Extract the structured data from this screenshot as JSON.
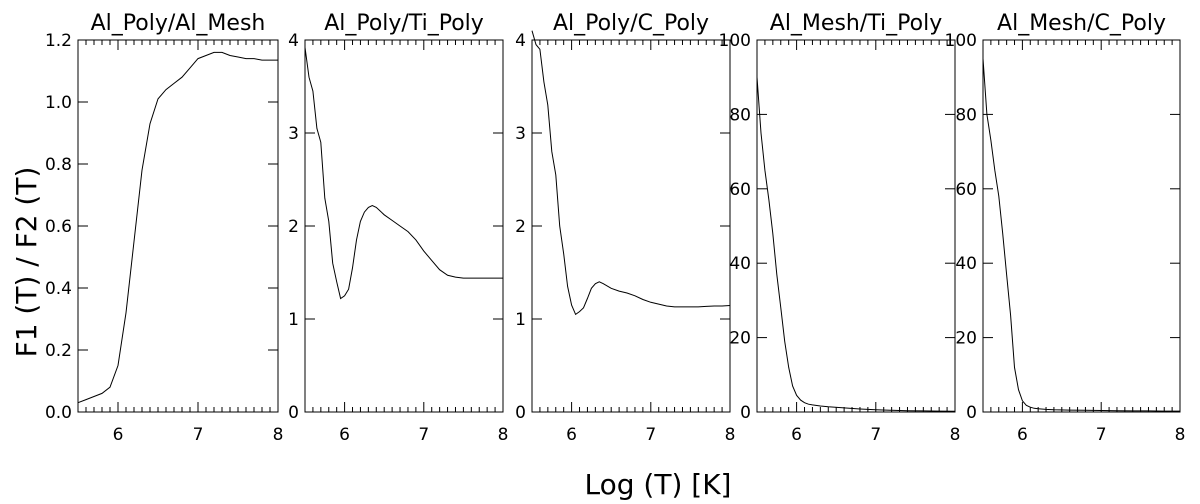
{
  "chart_data": {
    "type": "line",
    "ylabel": "F1 (T) / F2 (T)",
    "xlabel": "Log (T) [K]",
    "panels": [
      {
        "title": "Al_Poly/Al_Mesh",
        "xlim": [
          5.5,
          8.0
        ],
        "ylim": [
          0.0,
          1.2
        ],
        "xticks": [
          6,
          7,
          8
        ],
        "yticks": [
          0.0,
          0.2,
          0.4,
          0.6,
          0.8,
          1.0,
          1.2
        ],
        "ytick_labels": [
          "0.0",
          "0.2",
          "0.4",
          "0.6",
          "0.8",
          "1.0",
          "1.2"
        ],
        "x": [
          5.5,
          5.6,
          5.7,
          5.8,
          5.9,
          6.0,
          6.1,
          6.2,
          6.3,
          6.4,
          6.5,
          6.6,
          6.7,
          6.8,
          6.9,
          7.0,
          7.1,
          7.2,
          7.3,
          7.4,
          7.5,
          7.6,
          7.7,
          7.8,
          7.9,
          8.0
        ],
        "y": [
          0.03,
          0.04,
          0.05,
          0.06,
          0.08,
          0.15,
          0.32,
          0.55,
          0.78,
          0.93,
          1.01,
          1.04,
          1.06,
          1.08,
          1.11,
          1.14,
          1.15,
          1.16,
          1.16,
          1.15,
          1.145,
          1.14,
          1.14,
          1.135,
          1.135,
          1.135
        ]
      },
      {
        "title": "Al_Poly/Ti_Poly",
        "xlim": [
          5.5,
          8.0
        ],
        "ylim": [
          0,
          4
        ],
        "xticks": [
          6,
          7,
          8
        ],
        "yticks": [
          0,
          1,
          2,
          3,
          4
        ],
        "ytick_labels": [
          "0",
          "1",
          "2",
          "3",
          "4"
        ],
        "x": [
          5.5,
          5.55,
          5.6,
          5.65,
          5.7,
          5.75,
          5.8,
          5.85,
          5.9,
          5.95,
          6.0,
          6.05,
          6.1,
          6.15,
          6.2,
          6.25,
          6.3,
          6.35,
          6.4,
          6.5,
          6.6,
          6.7,
          6.8,
          6.9,
          7.0,
          7.1,
          7.2,
          7.3,
          7.4,
          7.5,
          7.6,
          7.7,
          7.8,
          7.9,
          8.0
        ],
        "y": [
          3.92,
          3.6,
          3.45,
          3.05,
          2.9,
          2.3,
          2.05,
          1.6,
          1.4,
          1.22,
          1.25,
          1.32,
          1.55,
          1.85,
          2.05,
          2.15,
          2.2,
          2.22,
          2.2,
          2.12,
          2.06,
          2.0,
          1.94,
          1.85,
          1.73,
          1.63,
          1.53,
          1.47,
          1.45,
          1.44,
          1.44,
          1.44,
          1.44,
          1.44,
          1.44
        ]
      },
      {
        "title": "Al_Poly/C_Poly",
        "xlim": [
          5.5,
          8.0
        ],
        "ylim": [
          0,
          4
        ],
        "xticks": [
          6,
          7,
          8
        ],
        "yticks": [
          0,
          1,
          2,
          3,
          4
        ],
        "ytick_labels": [
          "0",
          "1",
          "2",
          "3",
          "4"
        ],
        "x": [
          5.5,
          5.55,
          5.6,
          5.65,
          5.7,
          5.75,
          5.8,
          5.85,
          5.9,
          5.95,
          6.0,
          6.05,
          6.1,
          6.15,
          6.2,
          6.25,
          6.3,
          6.35,
          6.4,
          6.5,
          6.6,
          6.7,
          6.8,
          6.9,
          7.0,
          7.1,
          7.2,
          7.3,
          7.4,
          7.5,
          7.6,
          7.7,
          7.8,
          7.9,
          8.0
        ],
        "y": [
          4.1,
          3.95,
          3.9,
          3.55,
          3.3,
          2.8,
          2.55,
          2.0,
          1.7,
          1.35,
          1.15,
          1.05,
          1.08,
          1.12,
          1.22,
          1.33,
          1.38,
          1.4,
          1.38,
          1.33,
          1.3,
          1.28,
          1.25,
          1.21,
          1.18,
          1.16,
          1.14,
          1.13,
          1.13,
          1.13,
          1.13,
          1.135,
          1.14,
          1.14,
          1.145
        ]
      },
      {
        "title": "Al_Mesh/Ti_Poly",
        "xlim": [
          5.5,
          8.0
        ],
        "ylim": [
          0,
          100
        ],
        "xticks": [
          6,
          7,
          8
        ],
        "yticks": [
          0,
          20,
          40,
          60,
          80,
          100
        ],
        "ytick_labels": [
          "0",
          "20",
          "40",
          "60",
          "80",
          "100"
        ],
        "x": [
          5.5,
          5.55,
          5.6,
          5.65,
          5.7,
          5.75,
          5.8,
          5.85,
          5.9,
          5.95,
          6.0,
          6.05,
          6.1,
          6.15,
          6.2,
          6.3,
          6.4,
          6.6,
          6.8,
          7.0,
          7.2,
          7.4,
          7.6,
          7.8,
          8.0
        ],
        "y": [
          90,
          75,
          65,
          57,
          48,
          37,
          28,
          19,
          12,
          7,
          4.5,
          3.2,
          2.5,
          2.1,
          1.9,
          1.6,
          1.4,
          1.1,
          0.8,
          0.6,
          0.45,
          0.35,
          0.3,
          0.25,
          0.2
        ]
      },
      {
        "title": "Al_Mesh/C_Poly",
        "xlim": [
          5.5,
          8.0
        ],
        "ylim": [
          0,
          100
        ],
        "xticks": [
          6,
          7,
          8
        ],
        "yticks": [
          0,
          20,
          40,
          60,
          80,
          100
        ],
        "ytick_labels": [
          "0",
          "20",
          "40",
          "60",
          "80",
          "100"
        ],
        "x": [
          5.5,
          5.55,
          5.6,
          5.65,
          5.7,
          5.75,
          5.8,
          5.85,
          5.9,
          5.95,
          6.0,
          6.05,
          6.1,
          6.15,
          6.2,
          6.3,
          6.4,
          6.6,
          6.8,
          7.0,
          7.2,
          7.4,
          7.6,
          7.8,
          8.0
        ],
        "y": [
          95,
          80,
          73,
          65,
          58,
          48,
          37,
          26,
          12,
          6,
          3,
          1.8,
          1.3,
          1.0,
          0.9,
          0.7,
          0.6,
          0.5,
          0.45,
          0.4,
          0.35,
          0.3,
          0.3,
          0.25,
          0.25
        ]
      }
    ]
  }
}
